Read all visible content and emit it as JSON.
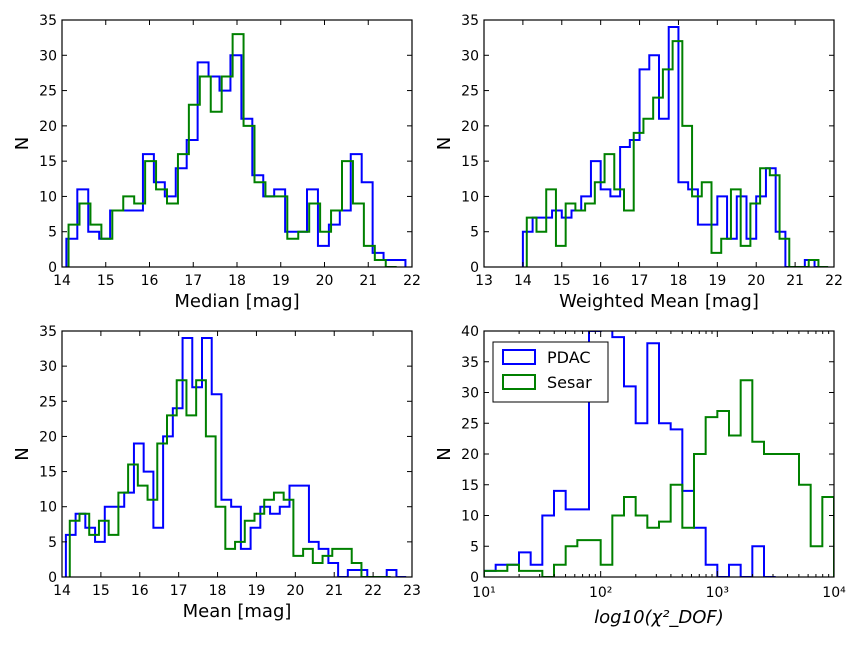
{
  "chart_data": [
    {
      "type": "histogram",
      "xlabel": "Median [mag]",
      "ylabel": "N",
      "xlim": [
        14,
        22
      ],
      "ylim": [
        0,
        35
      ],
      "xticks": [
        14,
        15,
        16,
        17,
        18,
        19,
        20,
        21,
        22
      ],
      "yticks": [
        0,
        5,
        10,
        15,
        20,
        25,
        30,
        35
      ],
      "xscale": "linear",
      "grid": false,
      "series": [
        {
          "name": "PDAC",
          "color": "#0000ff",
          "edges": [
            14.1,
            14.35,
            14.6,
            14.85,
            15.1,
            15.35,
            15.6,
            15.85,
            16.1,
            16.35,
            16.6,
            16.85,
            17.1,
            17.35,
            17.6,
            17.85,
            18.1,
            18.35,
            18.6,
            18.85,
            19.1,
            19.35,
            19.6,
            19.85,
            20.1,
            20.35,
            20.6,
            20.85,
            21.1,
            21.35,
            21.6,
            21.85
          ],
          "counts": [
            4,
            11,
            5,
            4,
            8,
            8,
            8,
            16,
            12,
            10,
            14,
            18,
            29,
            27,
            25,
            30,
            21,
            13,
            10,
            11,
            5,
            5,
            11,
            3,
            6,
            8,
            16,
            12,
            2,
            1,
            1
          ]
        },
        {
          "name": "Sesar",
          "color": "#008000",
          "edges": [
            14.15,
            14.4,
            14.65,
            14.9,
            15.15,
            15.4,
            15.65,
            15.9,
            16.15,
            16.4,
            16.65,
            16.9,
            17.15,
            17.4,
            17.65,
            17.9,
            18.15,
            18.4,
            18.65,
            18.9,
            19.15,
            19.4,
            19.65,
            19.9,
            20.15,
            20.4,
            20.65,
            20.9,
            21.15,
            21.4,
            21.65
          ],
          "counts": [
            6,
            9,
            6,
            4,
            8,
            10,
            9,
            15,
            11,
            9,
            16,
            23,
            27,
            22,
            27,
            33,
            20,
            12,
            10,
            10,
            4,
            5,
            9,
            5,
            8,
            15,
            9,
            3,
            1,
            0
          ]
        }
      ]
    },
    {
      "type": "histogram",
      "xlabel": "Weighted Mean [mag]",
      "ylabel": "N",
      "xlim": [
        13,
        22
      ],
      "ylim": [
        0,
        35
      ],
      "xticks": [
        13,
        14,
        15,
        16,
        17,
        18,
        19,
        20,
        21,
        22
      ],
      "yticks": [
        0,
        5,
        10,
        15,
        20,
        25,
        30,
        35
      ],
      "xscale": "linear",
      "grid": false,
      "series": [
        {
          "name": "PDAC",
          "color": "#0000ff",
          "edges": [
            14,
            14.25,
            14.5,
            14.75,
            15,
            15.25,
            15.5,
            15.75,
            16,
            16.25,
            16.5,
            16.75,
            17,
            17.25,
            17.5,
            17.75,
            18,
            18.25,
            18.5,
            18.75,
            19,
            19.25,
            19.5,
            19.75,
            20,
            20.25,
            20.5,
            20.75,
            21,
            21.25,
            21.5,
            21.75
          ],
          "counts": [
            5,
            7,
            7,
            8,
            7,
            8,
            10,
            15,
            11,
            10,
            17,
            18,
            28,
            30,
            21,
            34,
            12,
            11,
            6,
            6,
            10,
            4,
            10,
            4,
            10,
            14,
            5,
            0,
            0,
            1,
            0
          ]
        },
        {
          "name": "Sesar",
          "color": "#008000",
          "edges": [
            14.1,
            14.35,
            14.6,
            14.85,
            15.1,
            15.35,
            15.6,
            15.85,
            16.1,
            16.35,
            16.6,
            16.85,
            17.1,
            17.35,
            17.6,
            17.85,
            18.1,
            18.35,
            18.6,
            18.85,
            19.1,
            19.35,
            19.6,
            19.85,
            20.1,
            20.35,
            20.6,
            20.85,
            21.1,
            21.35,
            21.6,
            21.85
          ],
          "counts": [
            7,
            5,
            11,
            3,
            9,
            8,
            9,
            12,
            16,
            11,
            8,
            19,
            21,
            24,
            28,
            32,
            20,
            10,
            12,
            2,
            4,
            11,
            3,
            9,
            14,
            13,
            4,
            0,
            0,
            1,
            0
          ]
        }
      ]
    },
    {
      "type": "histogram",
      "xlabel": "Mean [mag]",
      "ylabel": "N",
      "xlim": [
        14,
        23
      ],
      "ylim": [
        0,
        35
      ],
      "xticks": [
        14,
        15,
        16,
        17,
        18,
        19,
        20,
        21,
        22,
        23
      ],
      "yticks": [
        0,
        5,
        10,
        15,
        20,
        25,
        30,
        35
      ],
      "xscale": "linear",
      "grid": false,
      "series": [
        {
          "name": "PDAC",
          "color": "#0000ff",
          "edges": [
            14.1,
            14.35,
            14.6,
            14.85,
            15.1,
            15.35,
            15.6,
            15.85,
            16.1,
            16.35,
            16.6,
            16.85,
            17.1,
            17.35,
            17.6,
            17.85,
            18.1,
            18.35,
            18.6,
            18.85,
            19.1,
            19.35,
            19.6,
            19.85,
            20.1,
            20.35,
            20.6,
            20.85,
            21.1,
            21.35,
            21.6,
            21.85,
            22.1,
            22.35,
            22.6,
            22.85
          ],
          "counts": [
            6,
            9,
            7,
            5,
            10,
            10,
            12,
            19,
            15,
            7,
            20,
            24,
            34,
            27,
            34,
            26,
            11,
            10,
            4,
            7,
            10,
            9,
            10,
            13,
            13,
            5,
            4,
            2,
            0,
            1,
            1,
            0,
            0,
            1,
            0
          ]
        },
        {
          "name": "Sesar",
          "color": "#008000",
          "edges": [
            14.2,
            14.45,
            14.7,
            14.95,
            15.2,
            15.45,
            15.7,
            15.95,
            16.2,
            16.45,
            16.7,
            16.95,
            17.2,
            17.45,
            17.7,
            17.95,
            18.2,
            18.45,
            18.7,
            18.95,
            19.2,
            19.45,
            19.7,
            19.95,
            20.2,
            20.45,
            20.7,
            20.95,
            21.2,
            21.45,
            21.7,
            21.95,
            22.2,
            22.45
          ],
          "counts": [
            8,
            9,
            6,
            8,
            6,
            12,
            16,
            13,
            11,
            19,
            23,
            28,
            23,
            28,
            20,
            10,
            4,
            5,
            8,
            9,
            11,
            12,
            11,
            3,
            4,
            2,
            3,
            4,
            4,
            2,
            0,
            0,
            0
          ]
        }
      ]
    },
    {
      "type": "histogram",
      "xlabel": "log10(χ²_DOF)",
      "ylabel": "N",
      "xlim": [
        10,
        10000
      ],
      "ylim": [
        0,
        40
      ],
      "xscale": "log",
      "xtick_labels": [
        "10¹",
        "10²",
        "10³",
        "10⁴"
      ],
      "yticks": [
        0,
        5,
        10,
        15,
        20,
        25,
        30,
        35,
        40
      ],
      "grid": false,
      "legend": "top-left",
      "series": [
        {
          "name": "PDAC",
          "color": "#0000ff",
          "log_edges": [
            1.0,
            1.1,
            1.2,
            1.3,
            1.4,
            1.5,
            1.6,
            1.7,
            1.8,
            1.9,
            2.0,
            2.1,
            2.2,
            2.3,
            2.4,
            2.5,
            2.6,
            2.7,
            2.8,
            2.9,
            3.0,
            3.1,
            3.2,
            3.3,
            3.4,
            3.5
          ],
          "counts": [
            1,
            2,
            2,
            4,
            2,
            10,
            14,
            11,
            11,
            40,
            42,
            39,
            31,
            25,
            38,
            25,
            24,
            14,
            8,
            2,
            0,
            2,
            0,
            5,
            0
          ]
        },
        {
          "name": "Sesar",
          "color": "#008000",
          "log_edges": [
            1.0,
            1.1,
            1.2,
            1.3,
            1.4,
            1.5,
            1.6,
            1.7,
            1.8,
            1.9,
            2.0,
            2.1,
            2.2,
            2.3,
            2.4,
            2.5,
            2.6,
            2.7,
            2.8,
            2.9,
            3.0,
            3.1,
            3.2,
            3.3,
            3.4,
            3.5,
            3.6,
            3.7,
            3.8,
            3.9,
            4.0
          ],
          "counts": [
            1,
            1,
            2,
            1,
            1,
            0,
            2,
            5,
            6,
            6,
            2,
            10,
            13,
            10,
            8,
            9,
            15,
            8,
            20,
            26,
            27,
            23,
            32,
            22,
            20,
            20,
            20,
            15,
            5,
            13
          ]
        }
      ]
    }
  ]
}
